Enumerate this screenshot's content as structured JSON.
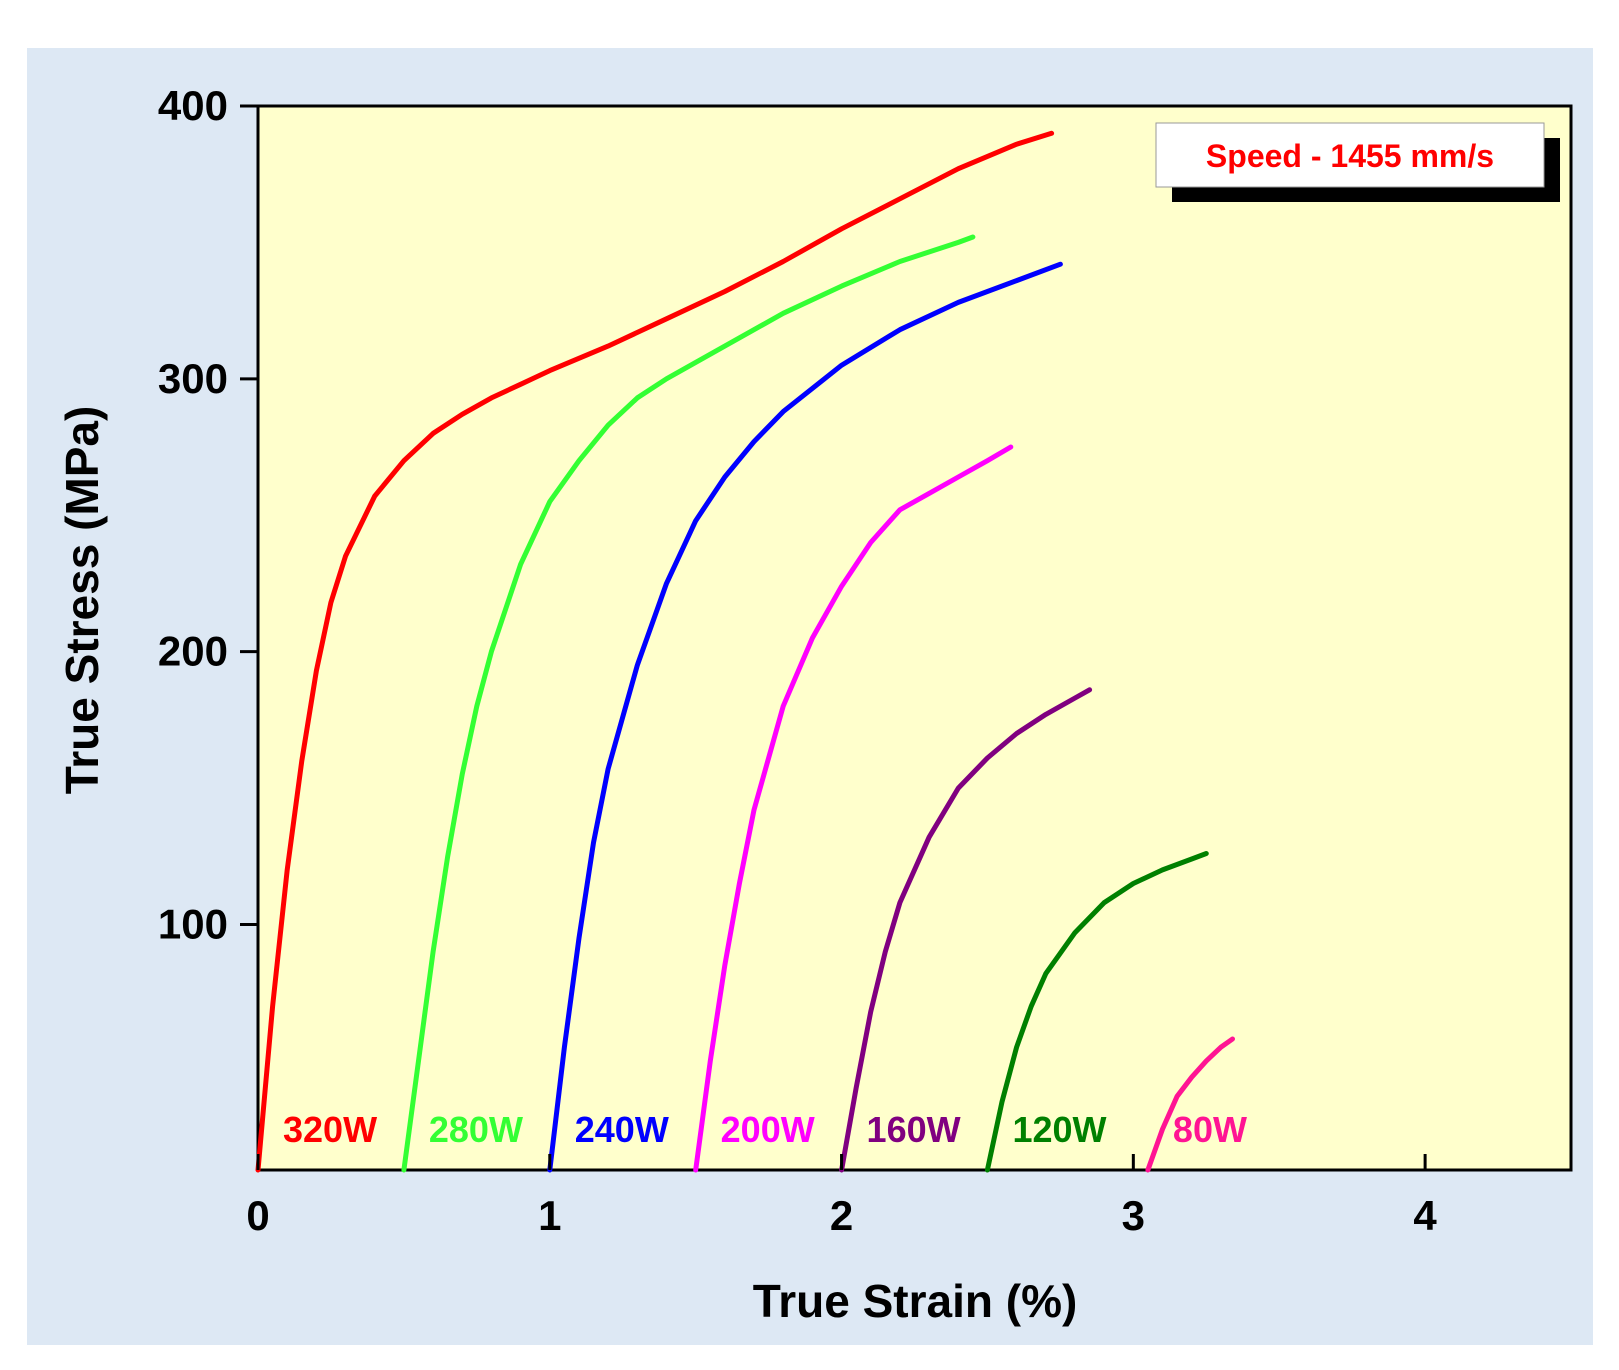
{
  "chart_data": {
    "type": "line",
    "xlabel": "True Strain (%)",
    "ylabel": "True Stress (MPa)",
    "xlim": [
      0,
      4.5
    ],
    "ylim": [
      10,
      400
    ],
    "xticks": [
      0,
      1,
      2,
      3,
      4
    ],
    "yticks": [
      100,
      200,
      300,
      400
    ],
    "xtick_labels": [
      "0",
      "1",
      "2",
      "3",
      "4"
    ],
    "ytick_labels": [
      "100",
      "200",
      "300",
      "400"
    ],
    "grid": false,
    "legend_placement": "top-right",
    "annotation": "Speed - 1455 mm/s",
    "annotation_color": "#ff0000",
    "background_outer": "#dde8f4",
    "background_plot": "#ffffcc",
    "series": [
      {
        "name": "320W",
        "color": "#ff0000",
        "x": [
          0,
          0.05,
          0.1,
          0.15,
          0.2,
          0.25,
          0.3,
          0.4,
          0.5,
          0.6,
          0.7,
          0.8,
          0.9,
          1.0,
          1.2,
          1.4,
          1.6,
          1.8,
          2.0,
          2.2,
          2.4,
          2.6,
          2.72
        ],
        "y": [
          10,
          70,
          120,
          160,
          193,
          218,
          235,
          257,
          270,
          280,
          287,
          293,
          298,
          303,
          312,
          322,
          332,
          343,
          355,
          366,
          377,
          386,
          390
        ]
      },
      {
        "name": "280W",
        "color": "#33ff33",
        "x": [
          0.5,
          0.55,
          0.6,
          0.65,
          0.7,
          0.75,
          0.8,
          0.9,
          1.0,
          1.1,
          1.2,
          1.3,
          1.4,
          1.6,
          1.8,
          2.0,
          2.2,
          2.4,
          2.45
        ],
        "y": [
          10,
          50,
          90,
          125,
          155,
          180,
          200,
          232,
          255,
          270,
          283,
          293,
          300,
          312,
          324,
          334,
          343,
          350,
          352
        ]
      },
      {
        "name": "240W",
        "color": "#0000ff",
        "x": [
          1.0,
          1.05,
          1.1,
          1.15,
          1.2,
          1.3,
          1.4,
          1.5,
          1.6,
          1.7,
          1.8,
          2.0,
          2.2,
          2.4,
          2.6,
          2.75
        ],
        "y": [
          10,
          55,
          95,
          130,
          157,
          195,
          225,
          248,
          264,
          277,
          288,
          305,
          318,
          328,
          336,
          342
        ]
      },
      {
        "name": "200W",
        "color": "#ff00ff",
        "x": [
          1.5,
          1.55,
          1.6,
          1.65,
          1.7,
          1.8,
          1.9,
          2.0,
          2.1,
          2.2,
          2.3,
          2.4,
          2.5,
          2.58
        ],
        "y": [
          10,
          50,
          85,
          115,
          142,
          180,
          205,
          224,
          240,
          252,
          258,
          264,
          270,
          275
        ]
      },
      {
        "name": "160W",
        "color": "#800080",
        "x": [
          2.0,
          2.05,
          2.1,
          2.15,
          2.2,
          2.3,
          2.4,
          2.5,
          2.6,
          2.7,
          2.8,
          2.85
        ],
        "y": [
          10,
          40,
          68,
          90,
          108,
          132,
          150,
          161,
          170,
          177,
          183,
          186
        ]
      },
      {
        "name": "120W",
        "color": "#008000",
        "x": [
          2.5,
          2.55,
          2.6,
          2.65,
          2.7,
          2.8,
          2.9,
          3.0,
          3.1,
          3.2,
          3.25
        ],
        "y": [
          10,
          35,
          55,
          70,
          82,
          97,
          108,
          115,
          120,
          124,
          126
        ]
      },
      {
        "name": "80W",
        "color": "#ff1493",
        "x": [
          3.05,
          3.1,
          3.15,
          3.2,
          3.25,
          3.3,
          3.34
        ],
        "y": [
          10,
          25,
          37,
          44,
          50,
          55,
          58
        ]
      }
    ]
  }
}
